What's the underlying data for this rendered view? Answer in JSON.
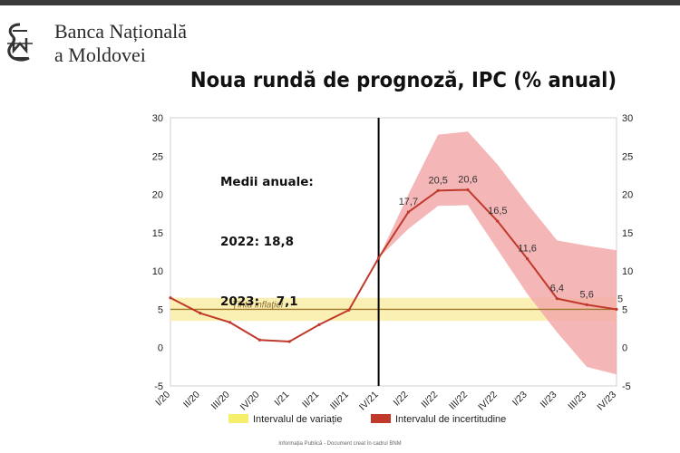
{
  "header": {
    "bank_name_line1": "Banca Națională",
    "bank_name_line2": "a Moldovei"
  },
  "slide": {
    "title": "Noua rundă de prognoză,  IPC (% anual)",
    "averages_title": "Medii anuale:",
    "average_2022": "2022: 18,8",
    "average_2023": "2023:    7,1",
    "footer": "Informația Publică - Document creat în cadrul BNM"
  },
  "colors": {
    "actual_line": "#c0392b",
    "uncertainty_band": "#f2a9a9",
    "target_band": "#fbf0b4",
    "target_line": "#a07a2c",
    "divider": "#000000"
  },
  "chart_data": {
    "type": "line",
    "title": "Noua rundă de prognoză,  IPC (% anual)",
    "x": [
      "I/20",
      "II/20",
      "III/20",
      "IV/20",
      "I/21",
      "II/21",
      "III/21",
      "IV/21",
      "I/22",
      "II/22",
      "III/22",
      "IV/22",
      "I/23",
      "II/23",
      "III/23",
      "IV/23"
    ],
    "ylim": [
      -5,
      30
    ],
    "yticks": [
      "-5",
      "0",
      "5",
      "10",
      "15",
      "20",
      "25",
      "30"
    ],
    "series": [
      {
        "name": "IPC",
        "values": [
          6.5,
          4.5,
          3.3,
          1.0,
          0.8,
          3.0,
          4.9,
          11.7,
          17.7,
          20.5,
          20.6,
          16.5,
          11.6,
          6.4,
          5.6,
          5.0
        ]
      }
    ],
    "data_labels": [
      {
        "x": "I/22",
        "label": "17,7"
      },
      {
        "x": "II/22",
        "label": "20,5"
      },
      {
        "x": "III/22",
        "label": "20,6"
      },
      {
        "x": "IV/22",
        "label": "16,5"
      },
      {
        "x": "I/23",
        "label": "11,6"
      },
      {
        "x": "II/23",
        "label": "6,4"
      },
      {
        "x": "III/23",
        "label": "5,6"
      },
      {
        "x": "IV/23",
        "label": "5"
      }
    ],
    "uncertainty_interval": {
      "name": "Intervalul de incertitudine",
      "upper": [
        11.7,
        20.0,
        27.8,
        28.2,
        23.9,
        18.8,
        14.0,
        13.3,
        12.7
      ],
      "lower": [
        11.7,
        15.5,
        18.5,
        18.6,
        12.8,
        7.0,
        2.0,
        -2.5,
        -3.5
      ]
    },
    "variation_interval": {
      "name": "Intervalul de variație",
      "low": 3.5,
      "high": 6.5
    },
    "target": {
      "label": "Ținta inflației",
      "value": 5
    },
    "forecast_start": "IV/21",
    "legend": [
      {
        "label": "Intervalul de variație",
        "color": "#f5ef6b"
      },
      {
        "label": "Intervalul de incertitudine",
        "color": "#c0392b"
      }
    ],
    "legend_position": "bottom",
    "grid": false
  }
}
